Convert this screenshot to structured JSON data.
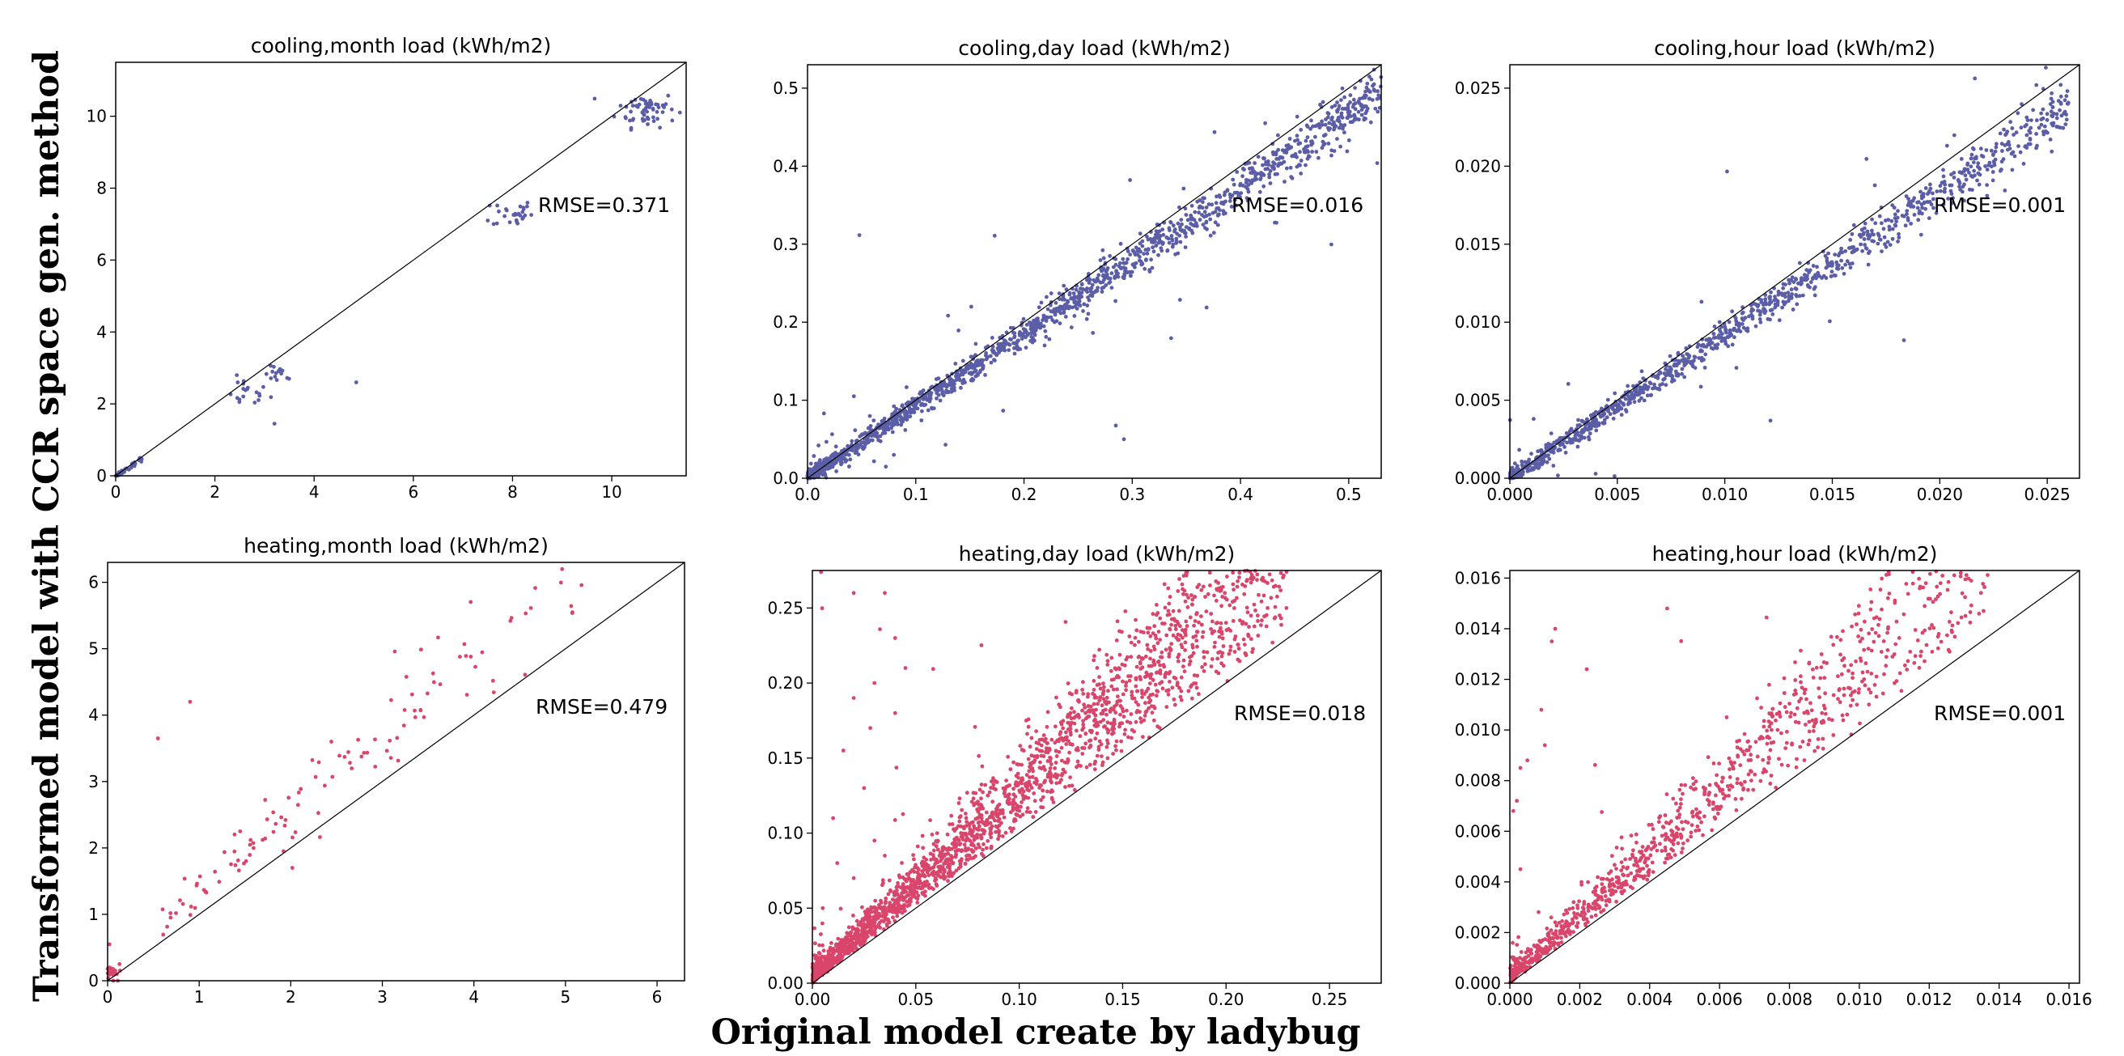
{
  "figure": {
    "ylabel": "Transformed model with CCR space gen. method",
    "xlabel": "Original model create by ladybug",
    "cooling_color": "#5b5ea6",
    "heating_color": "#d9456b",
    "line_color": "#000000"
  },
  "chart_data": [
    {
      "type": "scatter",
      "title": "cooling,month load (kWh/m2)",
      "annotation": "RMSE=0.371",
      "xlim": [
        0,
        11.5
      ],
      "ylim": [
        0,
        11.5
      ],
      "xticks": [
        0,
        2,
        4,
        6,
        8,
        10
      ],
      "xtick_labels": [
        "0",
        "2",
        "4",
        "6",
        "8",
        "10"
      ],
      "yticks": [
        0,
        2,
        4,
        6,
        8,
        10
      ],
      "ytick_labels": [
        "0",
        "2",
        "4",
        "6",
        "8",
        "10"
      ],
      "series": [
        {
          "name": "cooling",
          "color": "#5b5ea6",
          "clusters": [
            {
              "x": 0.3,
              "y": 0.3,
              "sx": 0.15,
              "sy": 0.12,
              "n": 40,
              "cx": 0.3
            },
            {
              "x": 2.6,
              "y": 2.3,
              "sx": 0.25,
              "sy": 0.2,
              "n": 20
            },
            {
              "x": 3.3,
              "y": 2.8,
              "sx": 0.15,
              "sy": 0.12,
              "n": 14
            },
            {
              "x": 8.0,
              "y": 7.3,
              "sx": 0.2,
              "sy": 0.2,
              "n": 28
            },
            {
              "x": 10.7,
              "y": 10.2,
              "sx": 0.3,
              "sy": 0.25,
              "n": 60
            }
          ],
          "points": [
            [
              4.85,
              2.6
            ],
            [
              3.2,
              1.45
            ],
            [
              7.5,
              7.1
            ]
          ]
        }
      ],
      "diagonal": [
        [
          0,
          0
        ],
        [
          11.5,
          11.5
        ]
      ]
    },
    {
      "type": "scatter",
      "title": "cooling,day load (kWh/m2)",
      "annotation": "RMSE=0.016",
      "xlim": [
        0,
        0.53
      ],
      "ylim": [
        0,
        0.53
      ],
      "xticks": [
        0,
        0.1,
        0.2,
        0.3,
        0.4,
        0.5
      ],
      "xtick_labels": [
        "0.0",
        "0.1",
        "0.2",
        "0.3",
        "0.4",
        "0.5"
      ],
      "yticks": [
        0,
        0.1,
        0.2,
        0.3,
        0.4,
        0.5
      ],
      "ytick_labels": [
        "0.0",
        "0.1",
        "0.2",
        "0.3",
        "0.4",
        "0.5"
      ],
      "series": [
        {
          "name": "cooling",
          "color": "#5b5ea6",
          "trend": {
            "n": 1500,
            "xmax": 0.53,
            "slope": 0.93,
            "spread": 0.012,
            "scale": 0.05,
            "outlier_frac": 0.05,
            "bias": 0.0
          }
        }
      ],
      "diagonal": [
        [
          0,
          0
        ],
        [
          0.53,
          0.53
        ]
      ]
    },
    {
      "type": "scatter",
      "title": "cooling,hour load (kWh/m2)",
      "annotation": "RMSE=0.001",
      "xlim": [
        0,
        0.0265
      ],
      "ylim": [
        0,
        0.0265
      ],
      "xticks": [
        0,
        0.005,
        0.01,
        0.015,
        0.02,
        0.025
      ],
      "xtick_labels": [
        "0.000",
        "0.005",
        "0.010",
        "0.015",
        "0.020",
        "0.025"
      ],
      "yticks": [
        0,
        0.005,
        0.01,
        0.015,
        0.02,
        0.025
      ],
      "ytick_labels": [
        "0.000",
        "0.005",
        "0.010",
        "0.015",
        "0.020",
        "0.025"
      ],
      "series": [
        {
          "name": "cooling",
          "color": "#5b5ea6",
          "trend": {
            "n": 1100,
            "xmax": 0.026,
            "slope": 0.92,
            "spread": 0.0006,
            "scale": 0.0025,
            "outlier_frac": 0.03,
            "bias": 0.0
          }
        }
      ],
      "diagonal": [
        [
          0,
          0
        ],
        [
          0.0265,
          0.0265
        ]
      ]
    },
    {
      "type": "scatter",
      "title": "heating,month load (kWh/m2)",
      "annotation": "RMSE=0.479",
      "xlim": [
        0,
        6.3
      ],
      "ylim": [
        0,
        6.3
      ],
      "xticks": [
        0,
        1,
        2,
        3,
        4,
        5,
        6
      ],
      "xtick_labels": [
        "0",
        "1",
        "2",
        "3",
        "4",
        "5",
        "6"
      ],
      "yticks": [
        0,
        1,
        2,
        3,
        4,
        5,
        6
      ],
      "ytick_labels": [
        "0",
        "1",
        "2",
        "3",
        "4",
        "5",
        "6"
      ],
      "series": [
        {
          "name": "heating",
          "color": "#d9456b",
          "trend": {
            "n": 120,
            "xmax": 5.2,
            "xmin": 0.6,
            "slope": 1.18,
            "spread": 0.35,
            "scale": 0.3,
            "outlier_frac": 0.03,
            "bias": 0.25
          },
          "clusters": [
            {
              "x": 0.08,
              "y": 0.12,
              "sx": 0.05,
              "sy": 0.07,
              "n": 25
            }
          ],
          "points": [
            [
              0.55,
              3.65
            ],
            [
              0.9,
              4.2
            ],
            [
              0.02,
              0.55
            ]
          ]
        }
      ],
      "diagonal": [
        [
          0,
          0
        ],
        [
          6.3,
          6.3
        ]
      ]
    },
    {
      "type": "scatter",
      "title": "heating,day load (kWh/m2)",
      "annotation": "RMSE=0.018",
      "xlim": [
        0,
        0.275
      ],
      "ylim": [
        0,
        0.275
      ],
      "xticks": [
        0,
        0.05,
        0.1,
        0.15,
        0.2,
        0.25
      ],
      "xtick_labels": [
        "0.00",
        "0.05",
        "0.10",
        "0.15",
        "0.20",
        "0.25"
      ],
      "yticks": [
        0,
        0.05,
        0.1,
        0.15,
        0.2,
        0.25
      ],
      "ytick_labels": [
        "0.00",
        "0.05",
        "0.10",
        "0.15",
        "0.20",
        "0.25"
      ],
      "series": [
        {
          "name": "heating",
          "color": "#d9456b",
          "trend": {
            "n": 2200,
            "xmax": 0.23,
            "slope": 1.22,
            "spread": 0.02,
            "scale": 0.03,
            "outlier_frac": 0.015,
            "bias": 0.0,
            "above": true
          }
        },
        {
          "name": "heating-outliers",
          "color": "#d9456b",
          "points": [
            [
              0.02,
              0.26
            ],
            [
              0.035,
              0.26
            ],
            [
              0.04,
              0.23
            ],
            [
              0.03,
              0.2
            ],
            [
              0.02,
              0.19
            ],
            [
              0.04,
              0.18
            ],
            [
              0.015,
              0.155
            ],
            [
              0.025,
              0.13
            ],
            [
              0.01,
              0.11
            ],
            [
              0.03,
              0.095
            ],
            [
              0.035,
              0.085
            ],
            [
              0.02,
              0.07
            ],
            [
              0.005,
              0.05
            ],
            [
              0.045,
              0.21
            ],
            [
              0.028,
              0.17
            ],
            [
              0.012,
              0.08
            ]
          ]
        }
      ],
      "diagonal": [
        [
          0,
          0
        ],
        [
          0.275,
          0.275
        ]
      ]
    },
    {
      "type": "scatter",
      "title": "heating,hour load (kWh/m2)",
      "annotation": "RMSE=0.001",
      "xlim": [
        0,
        0.0163
      ],
      "ylim": [
        0,
        0.0163
      ],
      "xticks": [
        0,
        0.002,
        0.004,
        0.006,
        0.008,
        0.01,
        0.012,
        0.014,
        0.016
      ],
      "xtick_labels": [
        "0.000",
        "0.002",
        "0.004",
        "0.006",
        "0.008",
        "0.010",
        "0.012",
        "0.014",
        "0.016"
      ],
      "yticks": [
        0,
        0.002,
        0.004,
        0.006,
        0.008,
        0.01,
        0.012,
        0.014,
        0.016
      ],
      "ytick_labels": [
        "0.000",
        "0.002",
        "0.004",
        "0.006",
        "0.008",
        "0.010",
        "0.012",
        "0.014",
        "0.016"
      ],
      "series": [
        {
          "name": "heating",
          "color": "#d9456b",
          "trend": {
            "n": 1000,
            "xmax": 0.0138,
            "slope": 1.22,
            "spread": 0.0011,
            "scale": 0.0018,
            "outlier_frac": 0.015,
            "bias": 0.0,
            "above": true
          }
        },
        {
          "name": "heating-outliers",
          "color": "#d9456b",
          "points": [
            [
              0.0013,
              0.014
            ],
            [
              0.0012,
              0.0135
            ],
            [
              0.0009,
              0.0108
            ],
            [
              0.001,
              0.0094
            ],
            [
              0.0005,
              0.0088
            ],
            [
              0.0003,
              0.0085
            ],
            [
              0.0002,
              0.0072
            ],
            [
              0.0001,
              0.0068
            ],
            [
              0.0003,
              0.0045
            ],
            [
              0.0022,
              0.0124
            ],
            [
              0.0045,
              0.0148
            ]
          ]
        }
      ],
      "diagonal": [
        [
          0,
          0
        ],
        [
          0.0163,
          0.0163
        ]
      ]
    }
  ]
}
